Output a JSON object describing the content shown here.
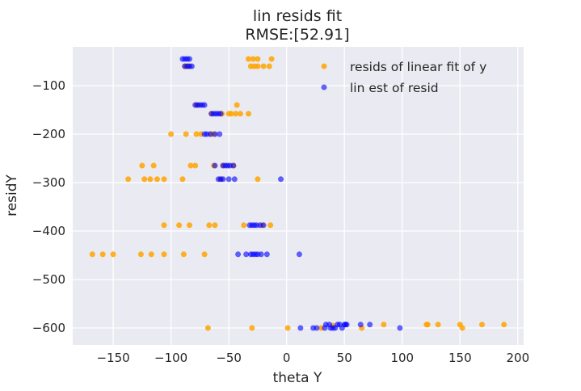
{
  "chart_data": {
    "type": "scatter",
    "title": "lin resids fit",
    "subtitle": "RMSE:[52.91]",
    "xlabel": "theta Y",
    "ylabel": "residY",
    "xlim": [
      -185,
      205
    ],
    "ylim": [
      -635,
      -20
    ],
    "xticks": [
      -150,
      -100,
      -50,
      0,
      50,
      100,
      150,
      200
    ],
    "yticks": [
      -100,
      -200,
      -300,
      -400,
      -500,
      -600
    ],
    "xtick_labels": [
      "−150",
      "−100",
      "−50",
      "0",
      "50",
      "100",
      "150",
      "200"
    ],
    "ytick_labels": [
      "−100",
      "−200",
      "−300",
      "−400",
      "−500",
      "−600"
    ],
    "grid": true,
    "legend_position": "top-right",
    "series": [
      {
        "name": "resids of linear fit of y",
        "color": "#FFA500",
        "points": [
          [
            -33,
            -45
          ],
          [
            -29,
            -45
          ],
          [
            -25,
            -45
          ],
          [
            -13,
            -45
          ],
          [
            -31,
            -60
          ],
          [
            -28,
            -60
          ],
          [
            -25,
            -60
          ],
          [
            -20,
            -60
          ],
          [
            -15,
            -60
          ],
          [
            -88,
            -60
          ],
          [
            -85,
            -60
          ],
          [
            -78,
            -140
          ],
          [
            -43,
            -140
          ],
          [
            -50,
            -158
          ],
          [
            -48,
            -158
          ],
          [
            -44,
            -158
          ],
          [
            -40,
            -158
          ],
          [
            -33,
            -158
          ],
          [
            -56,
            -158
          ],
          [
            -65,
            -158
          ],
          [
            -100,
            -200
          ],
          [
            -87,
            -200
          ],
          [
            -78,
            -200
          ],
          [
            -74,
            -200
          ],
          [
            -65,
            -200
          ],
          [
            -63,
            -200
          ],
          [
            -125,
            -265
          ],
          [
            -115,
            -265
          ],
          [
            -83,
            -265
          ],
          [
            -79,
            -265
          ],
          [
            -63,
            -265
          ],
          [
            -55,
            -265
          ],
          [
            -46,
            -265
          ],
          [
            -137,
            -293
          ],
          [
            -123,
            -293
          ],
          [
            -118,
            -293
          ],
          [
            -112,
            -293
          ],
          [
            -106,
            -293
          ],
          [
            -90,
            -293
          ],
          [
            -57,
            -293
          ],
          [
            -25,
            -293
          ],
          [
            -106,
            -388
          ],
          [
            -93,
            -388
          ],
          [
            -84,
            -388
          ],
          [
            -67,
            -388
          ],
          [
            -62,
            -388
          ],
          [
            -37,
            -388
          ],
          [
            -21,
            -388
          ],
          [
            -14,
            -388
          ],
          [
            -168,
            -448
          ],
          [
            -159,
            -448
          ],
          [
            -150,
            -448
          ],
          [
            -126,
            -448
          ],
          [
            -117,
            -448
          ],
          [
            -106,
            -448
          ],
          [
            -89,
            -448
          ],
          [
            -71,
            -448
          ],
          [
            -68,
            -600
          ],
          [
            -30,
            -600
          ],
          [
            1,
            -600
          ],
          [
            30,
            -600
          ],
          [
            40,
            -595
          ],
          [
            65,
            -600
          ],
          [
            84,
            -593
          ],
          [
            121,
            -593
          ],
          [
            122,
            -593
          ],
          [
            131,
            -593
          ],
          [
            150,
            -593
          ],
          [
            152,
            -600
          ],
          [
            169,
            -593
          ],
          [
            188,
            -593
          ]
        ]
      },
      {
        "name": "lin est of resid",
        "color": "#0000FF",
        "points": [
          [
            -90,
            -45
          ],
          [
            -88,
            -45
          ],
          [
            -86,
            -45
          ],
          [
            -84,
            -45
          ],
          [
            -88,
            -60
          ],
          [
            -86,
            -60
          ],
          [
            -84,
            -60
          ],
          [
            -82,
            -60
          ],
          [
            -79,
            -140
          ],
          [
            -77,
            -140
          ],
          [
            -75,
            -140
          ],
          [
            -73,
            -140
          ],
          [
            -71,
            -140
          ],
          [
            -65,
            -158
          ],
          [
            -63,
            -158
          ],
          [
            -61,
            -158
          ],
          [
            -59,
            -158
          ],
          [
            -57,
            -158
          ],
          [
            -71,
            -200
          ],
          [
            -69,
            -200
          ],
          [
            -66,
            -200
          ],
          [
            -62,
            -200
          ],
          [
            -58,
            -200
          ],
          [
            -62,
            -265
          ],
          [
            -55,
            -265
          ],
          [
            -53,
            -265
          ],
          [
            -51,
            -265
          ],
          [
            -49,
            -265
          ],
          [
            -46,
            -265
          ],
          [
            -59,
            -293
          ],
          [
            -57,
            -293
          ],
          [
            -55,
            -293
          ],
          [
            -50,
            -293
          ],
          [
            -45,
            -293
          ],
          [
            -5,
            -293
          ],
          [
            -32,
            -388
          ],
          [
            -30,
            -388
          ],
          [
            -28,
            -388
          ],
          [
            -26,
            -388
          ],
          [
            -23,
            -388
          ],
          [
            -20,
            -388
          ],
          [
            -42,
            -448
          ],
          [
            -35,
            -448
          ],
          [
            -31,
            -448
          ],
          [
            -29,
            -448
          ],
          [
            -27,
            -448
          ],
          [
            -25,
            -448
          ],
          [
            -22,
            -448
          ],
          [
            -17,
            -448
          ],
          [
            11,
            -448
          ],
          [
            12,
            -600
          ],
          [
            23,
            -600
          ],
          [
            26,
            -600
          ],
          [
            33,
            -600
          ],
          [
            34,
            -593
          ],
          [
            37,
            -593
          ],
          [
            38,
            -600
          ],
          [
            40,
            -600
          ],
          [
            42,
            -600
          ],
          [
            44,
            -593
          ],
          [
            46,
            -593
          ],
          [
            48,
            -600
          ],
          [
            50,
            -593
          ],
          [
            51,
            -593
          ],
          [
            52,
            -593
          ],
          [
            64,
            -593
          ],
          [
            72,
            -593
          ],
          [
            98,
            -600
          ]
        ]
      }
    ]
  }
}
